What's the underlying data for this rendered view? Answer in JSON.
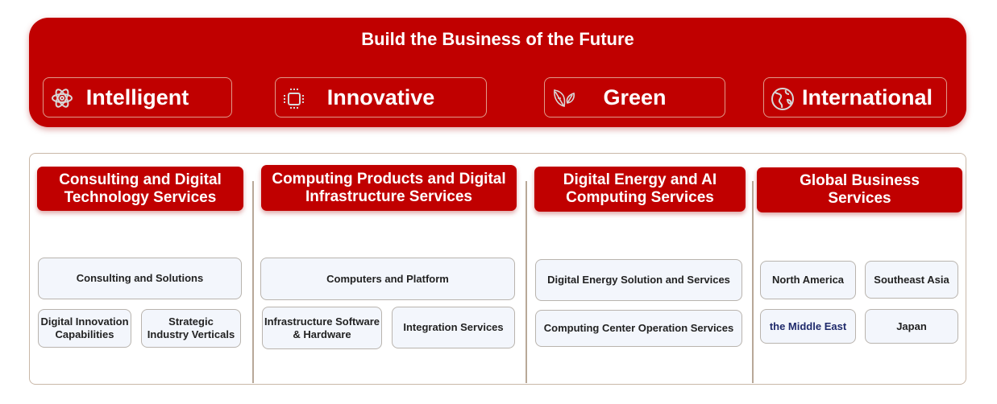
{
  "banner": {
    "title": "Build the Business of the Future",
    "pillars": [
      {
        "label": "Intelligent",
        "icon": "atom-icon"
      },
      {
        "label": "Innovative",
        "icon": "chip-icon"
      },
      {
        "label": "Green",
        "icon": "leaf-icon"
      },
      {
        "label": "International",
        "icon": "globe-icon"
      }
    ]
  },
  "columns": [
    {
      "header": "Consulting and Digital Technology Services",
      "items": [
        "Consulting and Solutions",
        "Digital Innovation Capabilities",
        "Strategic Industry Verticals"
      ]
    },
    {
      "header": "Computing Products and Digital Infrastructure Services",
      "items": [
        "Computers and Platform",
        "Infrastructure Software & Hardware",
        "Integration Services"
      ]
    },
    {
      "header": "Digital Energy and AI Computing Services",
      "items": [
        "Digital Energy Solution and Services",
        "Computing Center Operation Services"
      ]
    },
    {
      "header": "Global Business Services",
      "items": [
        "North America",
        "Southeast Asia",
        "the Middle East",
        "Japan"
      ]
    }
  ],
  "colors": {
    "brand_red": "#c00000",
    "box_fill": "#f3f6fc",
    "highlight_text": "#1f2a6b"
  }
}
